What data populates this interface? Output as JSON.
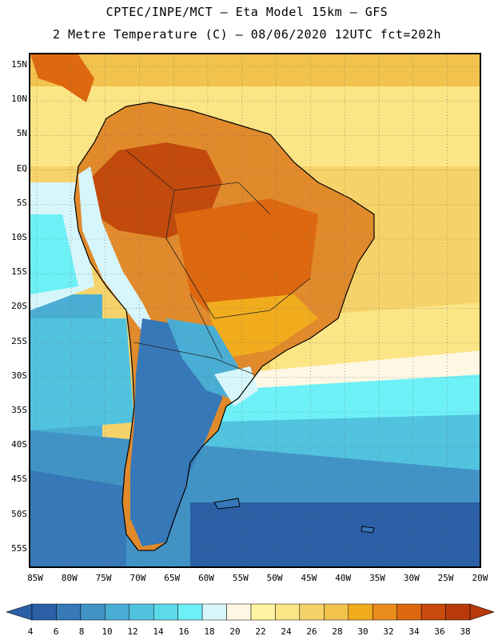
{
  "header": {
    "line1": "CPTEC/INPE/MCT –  Eta Model 15km – GFS",
    "line2": "2 Metre Temperature (C) – 08/06/2020 12UTC fct=202h"
  },
  "lat_labels": [
    "15N",
    "10N",
    "5N",
    "EQ",
    "5S",
    "10S",
    "15S",
    "20S",
    "25S",
    "30S",
    "35S",
    "40S",
    "45S",
    "50S",
    "55S"
  ],
  "lon_labels": [
    "85W",
    "80W",
    "75W",
    "70W",
    "65W",
    "60W",
    "55W",
    "50W",
    "45W",
    "40W",
    "35W",
    "30W",
    "25W",
    "20W"
  ],
  "colorbar": {
    "ticks": [
      "4",
      "6",
      "8",
      "10",
      "12",
      "14",
      "16",
      "18",
      "20",
      "22",
      "24",
      "26",
      "28",
      "30",
      "32",
      "34",
      "36",
      "38"
    ],
    "colors": [
      "#2b5fa6",
      "#3678b8",
      "#4193c6",
      "#4aaed4",
      "#52c3de",
      "#5cd9ea",
      "#6ef0f7",
      "#d7f6fb",
      "#fdf7e3",
      "#fdf3a0",
      "#fce585",
      "#f6d36a",
      "#f1c34d",
      "#f0ac1d",
      "#ea8c1c",
      "#dd6810",
      "#c84a0c",
      "#b83a0a"
    ]
  }
}
